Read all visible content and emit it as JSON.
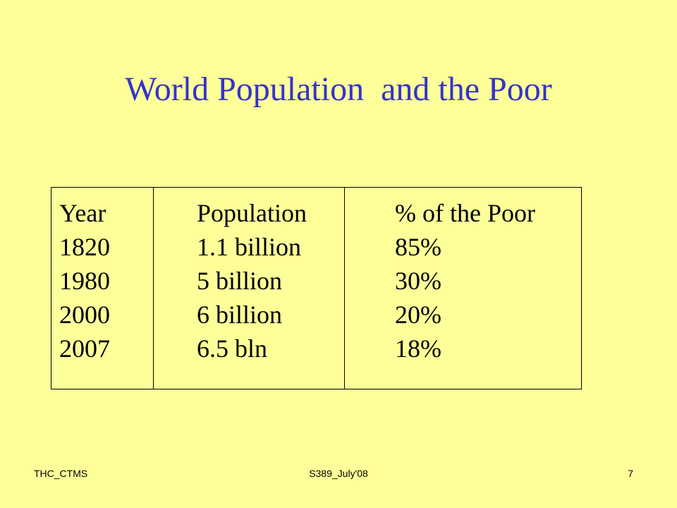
{
  "slide": {
    "title": "World Population  and the Poor"
  },
  "table": {
    "headers": [
      "Year",
      "Population",
      "% of the Poor"
    ],
    "rows": [
      [
        "1820",
        "1.1 billion",
        "85%"
      ],
      [
        "1980",
        "5 billion",
        "30%"
      ],
      [
        "2000",
        "6 billion",
        "20%"
      ],
      [
        "2007",
        "6.5 bln",
        "18%"
      ]
    ]
  },
  "footer": {
    "left": "THC_CTMS",
    "center": "S389_July'08",
    "page_number": "7"
  },
  "colors": {
    "background": "#ffff99",
    "title": "#3333cc",
    "text": "#000000"
  }
}
